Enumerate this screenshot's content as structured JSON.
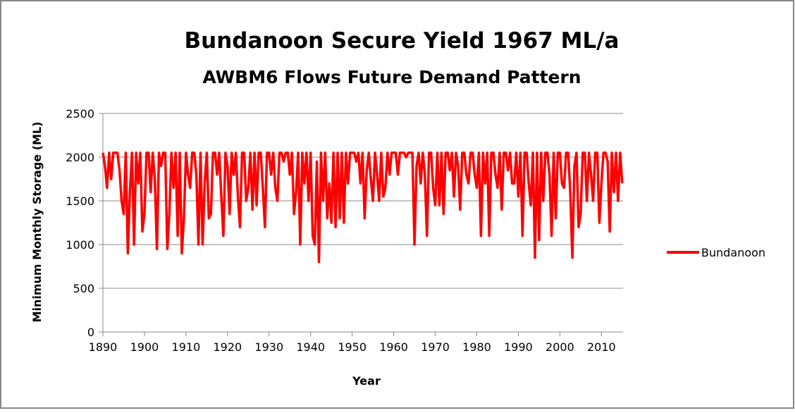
{
  "chart_data": {
    "type": "line",
    "title": "Bundanoon Secure Yield 1967 ML/a",
    "subtitle": "AWBM6 Flows Future Demand Pattern",
    "x_label": "Year",
    "y_label": "Minimum Monthly Storage (ML)",
    "x": [
      1890,
      1890.5,
      1891,
      1891.5,
      1892,
      1892.5,
      1893,
      1893.5,
      1894,
      1894.5,
      1895,
      1895.5,
      1896,
      1896.5,
      1897,
      1897.5,
      1898,
      1898.5,
      1899,
      1899.5,
      1900,
      1900.5,
      1901,
      1901.5,
      1902,
      1902.5,
      1903,
      1903.5,
      1904,
      1904.5,
      1905,
      1905.5,
      1906,
      1906.5,
      1907,
      1907.5,
      1908,
      1908.5,
      1909,
      1909.5,
      1910,
      1910.5,
      1911,
      1911.5,
      1912,
      1912.5,
      1913,
      1913.5,
      1914,
      1914.5,
      1915,
      1915.5,
      1916,
      1916.5,
      1917,
      1917.5,
      1918,
      1918.5,
      1919,
      1919.5,
      1920,
      1920.5,
      1921,
      1921.5,
      1922,
      1922.5,
      1923,
      1923.5,
      1924,
      1924.5,
      1925,
      1925.5,
      1926,
      1926.5,
      1927,
      1927.5,
      1928,
      1928.5,
      1929,
      1929.5,
      1930,
      1930.5,
      1931,
      1931.5,
      1932,
      1932.5,
      1933,
      1933.5,
      1934,
      1934.5,
      1935,
      1935.5,
      1936,
      1936.5,
      1937,
      1937.5,
      1938,
      1938.5,
      1939,
      1939.5,
      1940,
      1940.5,
      1941,
      1941.5,
      1942,
      1942.5,
      1943,
      1943.5,
      1944,
      1944.5,
      1945,
      1945.5,
      1946,
      1946.5,
      1947,
      1947.5,
      1948,
      1948.5,
      1949,
      1949.5,
      1950,
      1950.5,
      1951,
      1951.5,
      1952,
      1952.5,
      1953,
      1953.5,
      1954,
      1954.5,
      1955,
      1955.5,
      1956,
      1956.5,
      1957,
      1957.5,
      1958,
      1958.5,
      1959,
      1959.5,
      1960,
      1960.5,
      1961,
      1961.5,
      1962,
      1962.5,
      1963,
      1963.5,
      1964,
      1964.5,
      1965,
      1965.5,
      1966,
      1966.5,
      1967,
      1967.5,
      1968,
      1968.5,
      1969,
      1969.5,
      1970,
      1970.5,
      1971,
      1971.5,
      1972,
      1972.5,
      1973,
      1973.5,
      1974,
      1974.5,
      1975,
      1975.5,
      1976,
      1976.5,
      1977,
      1977.5,
      1978,
      1978.5,
      1979,
      1979.5,
      1980,
      1980.5,
      1981,
      1981.5,
      1982,
      1982.5,
      1983,
      1983.5,
      1984,
      1984.5,
      1985,
      1985.5,
      1986,
      1986.5,
      1987,
      1987.5,
      1988,
      1988.5,
      1989,
      1989.5,
      1990,
      1990.5,
      1991,
      1991.5,
      1992,
      1992.5,
      1993,
      1993.5,
      1994,
      1994.5,
      1995,
      1995.5,
      1996,
      1996.5,
      1997,
      1997.5,
      1998,
      1998.5,
      1999,
      1999.5,
      2000,
      2000.5,
      2001,
      2001.5,
      2002,
      2002.5,
      2003,
      2003.5,
      2004,
      2004.5,
      2005,
      2005.5,
      2006,
      2006.5,
      2007,
      2007.5,
      2008,
      2008.5,
      2009,
      2009.5,
      2010,
      2010.5,
      2011,
      2011.5,
      2012,
      2012.5,
      2013,
      2013.5,
      2014,
      2014.5,
      2015
    ],
    "series": [
      {
        "name": "Bundanoon",
        "color": "#ff0000",
        "values": [
          2050,
          1900,
          1650,
          2050,
          1750,
          2050,
          2050,
          2050,
          1850,
          1500,
          1350,
          2050,
          900,
          1600,
          2050,
          1000,
          2050,
          1700,
          2050,
          1150,
          1350,
          2050,
          2050,
          1600,
          2050,
          1750,
          950,
          2050,
          1900,
          2050,
          2050,
          950,
          1350,
          2050,
          1650,
          2050,
          1100,
          2050,
          900,
          1300,
          2050,
          1800,
          1650,
          2050,
          2050,
          1800,
          1000,
          2050,
          1000,
          1700,
          2050,
          1300,
          1350,
          2050,
          2050,
          1800,
          2050,
          1550,
          1100,
          2050,
          1900,
          1350,
          2050,
          1800,
          2050,
          1550,
          1200,
          2050,
          2050,
          1500,
          1650,
          2050,
          1400,
          2050,
          1450,
          2050,
          2050,
          1650,
          1200,
          2050,
          2050,
          1800,
          2050,
          1650,
          1500,
          2050,
          2050,
          1950,
          2050,
          2050,
          1800,
          2050,
          1350,
          1600,
          2050,
          1000,
          2050,
          1700,
          2050,
          1500,
          2050,
          1100,
          1000,
          1950,
          800,
          2050,
          1500,
          2050,
          1300,
          1700,
          1250,
          2050,
          1200,
          2050,
          1300,
          2050,
          1250,
          2050,
          1700,
          2050,
          2050,
          2050,
          1950,
          2050,
          1700,
          2050,
          1300,
          1850,
          2050,
          1750,
          1500,
          2050,
          1800,
          1500,
          2050,
          1550,
          1650,
          2050,
          1800,
          2050,
          2050,
          2050,
          1800,
          2050,
          2050,
          2050,
          2000,
          2050,
          2050,
          2050,
          1000,
          1900,
          2050,
          1700,
          2050,
          1800,
          1100,
          2050,
          2050,
          1650,
          1450,
          2050,
          1450,
          2050,
          1350,
          2050,
          2050,
          1850,
          2050,
          1550,
          2050,
          1900,
          1400,
          2050,
          2050,
          1800,
          1700,
          2050,
          2050,
          1800,
          1650,
          2050,
          1100,
          2050,
          1700,
          2050,
          1100,
          2050,
          2050,
          1800,
          1650,
          2050,
          1400,
          2050,
          2050,
          1850,
          2050,
          1700,
          1700,
          2050,
          1550,
          2050,
          1100,
          2050,
          2050,
          1700,
          1450,
          2050,
          850,
          2050,
          1050,
          2050,
          1500,
          2050,
          2050,
          1800,
          1100,
          2050,
          1300,
          2050,
          2050,
          1700,
          1650,
          2050,
          2050,
          1600,
          850,
          1900,
          2050,
          1200,
          1350,
          2050,
          2050,
          1500,
          2050,
          1800,
          1500,
          2050,
          2050,
          1250,
          1700,
          2050,
          2050,
          1950,
          1150,
          2050,
          1600,
          2050,
          1500,
          2050,
          1700
        ]
      }
    ],
    "xlim": [
      1890,
      2015.2
    ],
    "xticks": [
      1890,
      1900,
      1910,
      1920,
      1930,
      1940,
      1950,
      1960,
      1970,
      1980,
      1990,
      2000,
      2010
    ],
    "ylim": [
      0,
      2500
    ],
    "yticks": [
      0,
      500,
      1000,
      1500,
      2000,
      2500
    ],
    "grid": true,
    "legend": "right"
  }
}
